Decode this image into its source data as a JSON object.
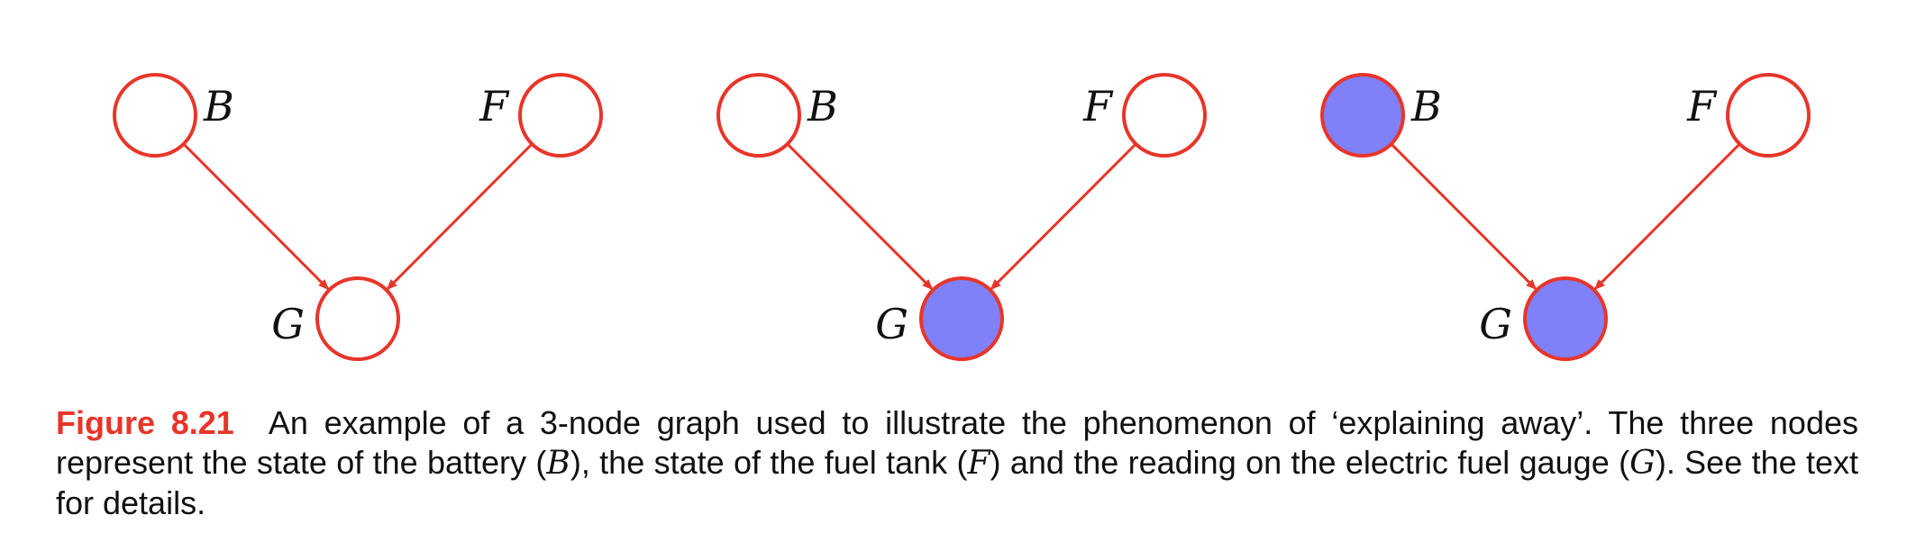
{
  "figure": {
    "label": "Figure 8.21",
    "caption_parts": [
      "An example of a 3-node graph used to illustrate the phenomenon of ‘explaining away’. The three nodes represent the state of the battery (",
      "B",
      "), the state of the fuel tank (",
      "F",
      ") and the reading on the electric fuel gauge (",
      "G",
      "). See the text for details."
    ]
  },
  "colors": {
    "edge": "#e8352a",
    "observed_fill": "#8080f8",
    "unobserved_fill": "#ffffff"
  },
  "graphs": [
    {
      "nodes": [
        {
          "id": "B",
          "label": "B",
          "observed": false
        },
        {
          "id": "F",
          "label": "F",
          "observed": false
        },
        {
          "id": "G",
          "label": "G",
          "observed": false
        }
      ],
      "edges": [
        {
          "from": "B",
          "to": "G"
        },
        {
          "from": "F",
          "to": "G"
        }
      ]
    },
    {
      "nodes": [
        {
          "id": "B",
          "label": "B",
          "observed": false
        },
        {
          "id": "F",
          "label": "F",
          "observed": false
        },
        {
          "id": "G",
          "label": "G",
          "observed": true
        }
      ],
      "edges": [
        {
          "from": "B",
          "to": "G"
        },
        {
          "from": "F",
          "to": "G"
        }
      ]
    },
    {
      "nodes": [
        {
          "id": "B",
          "label": "B",
          "observed": true
        },
        {
          "id": "F",
          "label": "F",
          "observed": false
        },
        {
          "id": "G",
          "label": "G",
          "observed": true
        }
      ],
      "edges": [
        {
          "from": "B",
          "to": "G"
        },
        {
          "from": "F",
          "to": "G"
        }
      ]
    }
  ]
}
